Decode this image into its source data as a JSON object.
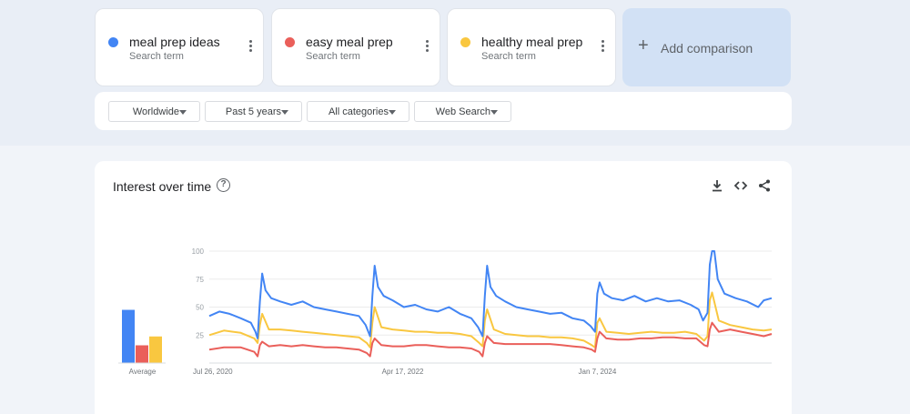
{
  "search_terms": [
    {
      "name": "meal prep ideas",
      "subtitle": "Search term",
      "color": "#4285f4"
    },
    {
      "name": "easy meal prep",
      "subtitle": "Search term",
      "color": "#ea5f5a"
    },
    {
      "name": "healthy meal prep",
      "subtitle": "Search term",
      "color": "#f9c740"
    }
  ],
  "add_comparison_label": "Add comparison",
  "filters": [
    {
      "label": "Worldwide"
    },
    {
      "label": "Past 5 years"
    },
    {
      "label": "All categories"
    },
    {
      "label": "Web Search"
    }
  ],
  "card_title": "Interest over time",
  "card_actions": [
    "download-icon",
    "embed-icon",
    "share-icon"
  ],
  "chart_data": {
    "type": "line",
    "title": "",
    "ylim": [
      0,
      100
    ],
    "yticks": [
      25,
      50,
      75,
      100
    ],
    "grid": true,
    "xlabels": [
      {
        "label": "Jul 26, 2020",
        "t": 2020.57
      },
      {
        "label": "Apr 17, 2022",
        "t": 2022.29
      },
      {
        "label": "Jan 7, 2024",
        "t": 2024.02
      }
    ],
    "xrange": [
      2020.57,
      2025.57
    ],
    "series": [
      {
        "name": "meal prep ideas",
        "color": "#4285f4",
        "points": [
          [
            2020.57,
            42
          ],
          [
            2020.66,
            46
          ],
          [
            2020.75,
            44
          ],
          [
            2020.85,
            40
          ],
          [
            2020.94,
            36
          ],
          [
            2020.98,
            28
          ],
          [
            2021.0,
            22
          ],
          [
            2021.02,
            55
          ],
          [
            2021.04,
            80
          ],
          [
            2021.07,
            65
          ],
          [
            2021.12,
            58
          ],
          [
            2021.2,
            55
          ],
          [
            2021.3,
            52
          ],
          [
            2021.4,
            55
          ],
          [
            2021.5,
            50
          ],
          [
            2021.6,
            48
          ],
          [
            2021.7,
            46
          ],
          [
            2021.8,
            44
          ],
          [
            2021.9,
            42
          ],
          [
            2021.96,
            34
          ],
          [
            2022.0,
            24
          ],
          [
            2022.02,
            60
          ],
          [
            2022.04,
            87
          ],
          [
            2022.07,
            68
          ],
          [
            2022.12,
            60
          ],
          [
            2022.2,
            56
          ],
          [
            2022.3,
            50
          ],
          [
            2022.4,
            52
          ],
          [
            2022.5,
            48
          ],
          [
            2022.6,
            46
          ],
          [
            2022.7,
            50
          ],
          [
            2022.8,
            44
          ],
          [
            2022.9,
            40
          ],
          [
            2022.96,
            32
          ],
          [
            2023.0,
            24
          ],
          [
            2023.02,
            60
          ],
          [
            2023.04,
            87
          ],
          [
            2023.07,
            68
          ],
          [
            2023.12,
            60
          ],
          [
            2023.2,
            55
          ],
          [
            2023.3,
            50
          ],
          [
            2023.4,
            48
          ],
          [
            2023.5,
            46
          ],
          [
            2023.6,
            44
          ],
          [
            2023.7,
            45
          ],
          [
            2023.8,
            40
          ],
          [
            2023.9,
            38
          ],
          [
            2023.96,
            33
          ],
          [
            2024.0,
            28
          ],
          [
            2024.02,
            62
          ],
          [
            2024.04,
            72
          ],
          [
            2024.08,
            62
          ],
          [
            2024.15,
            58
          ],
          [
            2024.25,
            56
          ],
          [
            2024.35,
            60
          ],
          [
            2024.45,
            55
          ],
          [
            2024.55,
            58
          ],
          [
            2024.65,
            55
          ],
          [
            2024.75,
            56
          ],
          [
            2024.85,
            52
          ],
          [
            2024.92,
            48
          ],
          [
            2024.96,
            38
          ],
          [
            2025.0,
            45
          ],
          [
            2025.02,
            88
          ],
          [
            2025.04,
            100
          ],
          [
            2025.06,
            100
          ],
          [
            2025.09,
            75
          ],
          [
            2025.15,
            62
          ],
          [
            2025.25,
            58
          ],
          [
            2025.35,
            55
          ],
          [
            2025.45,
            50
          ],
          [
            2025.5,
            56
          ],
          [
            2025.57,
            58
          ]
        ]
      },
      {
        "name": "easy meal prep",
        "color": "#ea5f5a",
        "points": [
          [
            2020.57,
            12
          ],
          [
            2020.7,
            14
          ],
          [
            2020.85,
            14
          ],
          [
            2020.97,
            10
          ],
          [
            2021.0,
            6
          ],
          [
            2021.02,
            16
          ],
          [
            2021.04,
            19
          ],
          [
            2021.1,
            15
          ],
          [
            2021.2,
            16
          ],
          [
            2021.3,
            15
          ],
          [
            2021.4,
            16
          ],
          [
            2021.5,
            15
          ],
          [
            2021.6,
            14
          ],
          [
            2021.7,
            14
          ],
          [
            2021.8,
            13
          ],
          [
            2021.9,
            12
          ],
          [
            2021.97,
            9
          ],
          [
            2022.0,
            6
          ],
          [
            2022.02,
            18
          ],
          [
            2022.04,
            22
          ],
          [
            2022.1,
            16
          ],
          [
            2022.2,
            15
          ],
          [
            2022.3,
            15
          ],
          [
            2022.4,
            16
          ],
          [
            2022.5,
            16
          ],
          [
            2022.6,
            15
          ],
          [
            2022.7,
            14
          ],
          [
            2022.8,
            14
          ],
          [
            2022.9,
            13
          ],
          [
            2022.97,
            10
          ],
          [
            2023.0,
            6
          ],
          [
            2023.02,
            18
          ],
          [
            2023.04,
            24
          ],
          [
            2023.1,
            18
          ],
          [
            2023.2,
            17
          ],
          [
            2023.3,
            17
          ],
          [
            2023.4,
            17
          ],
          [
            2023.5,
            17
          ],
          [
            2023.6,
            17
          ],
          [
            2023.7,
            16
          ],
          [
            2023.8,
            15
          ],
          [
            2023.9,
            14
          ],
          [
            2023.97,
            12
          ],
          [
            2024.0,
            10
          ],
          [
            2024.02,
            22
          ],
          [
            2024.04,
            28
          ],
          [
            2024.1,
            22
          ],
          [
            2024.2,
            21
          ],
          [
            2024.3,
            21
          ],
          [
            2024.4,
            22
          ],
          [
            2024.5,
            22
          ],
          [
            2024.6,
            23
          ],
          [
            2024.7,
            23
          ],
          [
            2024.8,
            22
          ],
          [
            2024.9,
            22
          ],
          [
            2024.97,
            16
          ],
          [
            2025.0,
            15
          ],
          [
            2025.02,
            30
          ],
          [
            2025.04,
            36
          ],
          [
            2025.1,
            28
          ],
          [
            2025.2,
            30
          ],
          [
            2025.3,
            28
          ],
          [
            2025.4,
            26
          ],
          [
            2025.5,
            24
          ],
          [
            2025.57,
            26
          ]
        ]
      },
      {
        "name": "healthy meal prep",
        "color": "#f9c740",
        "points": [
          [
            2020.57,
            25
          ],
          [
            2020.7,
            29
          ],
          [
            2020.85,
            27
          ],
          [
            2020.97,
            22
          ],
          [
            2021.0,
            18
          ],
          [
            2021.02,
            34
          ],
          [
            2021.04,
            44
          ],
          [
            2021.1,
            30
          ],
          [
            2021.2,
            30
          ],
          [
            2021.3,
            29
          ],
          [
            2021.4,
            28
          ],
          [
            2021.5,
            27
          ],
          [
            2021.6,
            26
          ],
          [
            2021.7,
            25
          ],
          [
            2021.8,
            24
          ],
          [
            2021.9,
            23
          ],
          [
            2021.97,
            18
          ],
          [
            2022.0,
            14
          ],
          [
            2022.02,
            36
          ],
          [
            2022.04,
            50
          ],
          [
            2022.1,
            32
          ],
          [
            2022.2,
            30
          ],
          [
            2022.3,
            29
          ],
          [
            2022.4,
            28
          ],
          [
            2022.5,
            28
          ],
          [
            2022.6,
            27
          ],
          [
            2022.7,
            27
          ],
          [
            2022.8,
            26
          ],
          [
            2022.9,
            24
          ],
          [
            2022.97,
            18
          ],
          [
            2023.0,
            15
          ],
          [
            2023.02,
            38
          ],
          [
            2023.04,
            48
          ],
          [
            2023.1,
            30
          ],
          [
            2023.2,
            26
          ],
          [
            2023.3,
            25
          ],
          [
            2023.4,
            24
          ],
          [
            2023.5,
            24
          ],
          [
            2023.6,
            23
          ],
          [
            2023.7,
            23
          ],
          [
            2023.8,
            22
          ],
          [
            2023.9,
            20
          ],
          [
            2023.97,
            16
          ],
          [
            2024.0,
            14
          ],
          [
            2024.02,
            36
          ],
          [
            2024.04,
            40
          ],
          [
            2024.1,
            28
          ],
          [
            2024.2,
            27
          ],
          [
            2024.3,
            26
          ],
          [
            2024.4,
            27
          ],
          [
            2024.5,
            28
          ],
          [
            2024.6,
            27
          ],
          [
            2024.7,
            27
          ],
          [
            2024.8,
            28
          ],
          [
            2024.9,
            26
          ],
          [
            2024.97,
            20
          ],
          [
            2025.0,
            24
          ],
          [
            2025.02,
            56
          ],
          [
            2025.04,
            63
          ],
          [
            2025.1,
            38
          ],
          [
            2025.2,
            34
          ],
          [
            2025.3,
            32
          ],
          [
            2025.4,
            30
          ],
          [
            2025.5,
            29
          ],
          [
            2025.57,
            30
          ]
        ]
      }
    ],
    "average_bars": {
      "label": "Average",
      "values": [
        48,
        16,
        24
      ]
    }
  }
}
